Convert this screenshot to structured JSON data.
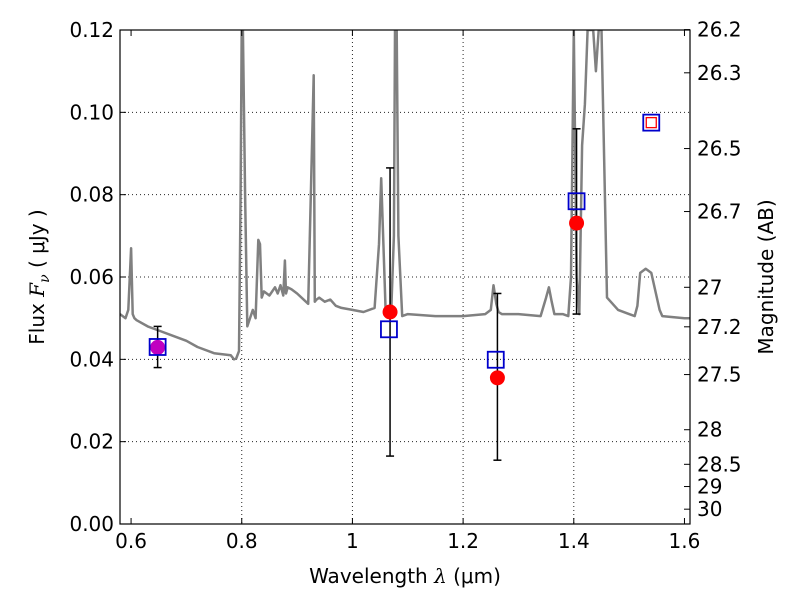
{
  "chart_data": {
    "type": "line",
    "xlabel_text": "Wavelength",
    "xlabel_math": "λ",
    "xlabel_unit": "(μm)",
    "ylabel_text": "Flux",
    "ylabel_math": "F",
    "ylabel_sub": "ν",
    "ylabel_unit": "( μJy )",
    "y2label": "Magnitude (AB)",
    "xlim": [
      0.58,
      1.61
    ],
    "ylim": [
      0.0,
      0.12
    ],
    "x_ticks": [
      0.6,
      0.8,
      1.0,
      1.2,
      1.4,
      1.6
    ],
    "x_tick_labels": [
      "0.6",
      "0.8",
      "1",
      "1.2",
      "1.4",
      "1.6"
    ],
    "y_ticks": [
      0.0,
      0.02,
      0.04,
      0.06,
      0.08,
      0.1,
      0.12
    ],
    "y_tick_labels": [
      "0.00",
      "0.02",
      "0.04",
      "0.06",
      "0.08",
      "0.10",
      "0.12"
    ],
    "y2_ticks": [
      {
        "flux": 0.1201,
        "label": "26.2"
      },
      {
        "flux": 0.1096,
        "label": "26.3"
      },
      {
        "flux": 0.0912,
        "label": "26.5"
      },
      {
        "flux": 0.0759,
        "label": "26.7"
      },
      {
        "flux": 0.0575,
        "label": "27"
      },
      {
        "flux": 0.0479,
        "label": "27.2"
      },
      {
        "flux": 0.0363,
        "label": "27.5"
      },
      {
        "flux": 0.0229,
        "label": "28"
      },
      {
        "flux": 0.0145,
        "label": "28.5"
      },
      {
        "flux": 0.0091,
        "label": "29"
      },
      {
        "flux": 0.0036,
        "label": "30"
      }
    ],
    "grid": true,
    "grid_x": [
      0.8,
      1.0,
      1.2,
      1.4
    ],
    "grid_y": [
      0.02,
      0.04,
      0.06,
      0.08,
      0.1
    ],
    "colors": {
      "model": "#808080",
      "observed": "#ff0000",
      "synthetic": "#0000cc",
      "overlap": "#c000c0",
      "errorbar": "#000000"
    },
    "series": [
      {
        "name": "model spectrum",
        "x": [
          0.58,
          0.59,
          0.595,
          0.6,
          0.603,
          0.606,
          0.61,
          0.63,
          0.65,
          0.68,
          0.7,
          0.72,
          0.75,
          0.78,
          0.786,
          0.79,
          0.795,
          0.798,
          0.8,
          0.802,
          0.806,
          0.81,
          0.82,
          0.825,
          0.83,
          0.833,
          0.836,
          0.84,
          0.85,
          0.86,
          0.865,
          0.87,
          0.875,
          0.878,
          0.88,
          0.883,
          0.89,
          0.9,
          0.92,
          0.93,
          0.932,
          0.935,
          0.94,
          0.95,
          0.96,
          0.97,
          0.98,
          1.0,
          1.02,
          1.04,
          1.048,
          1.052,
          1.056,
          1.06,
          1.065,
          1.07,
          1.075,
          1.077,
          1.08,
          1.083,
          1.09,
          1.1,
          1.15,
          1.2,
          1.24,
          1.25,
          1.255,
          1.26,
          1.264,
          1.27,
          1.3,
          1.34,
          1.35,
          1.355,
          1.36,
          1.365,
          1.38,
          1.39,
          1.395,
          1.4,
          1.405,
          1.41,
          1.415,
          1.42,
          1.425,
          1.43,
          1.435,
          1.44,
          1.445,
          1.45,
          1.46,
          1.48,
          1.5,
          1.51,
          1.515,
          1.52,
          1.53,
          1.54,
          1.555,
          1.56,
          1.6,
          1.61
        ],
        "y": [
          0.051,
          0.05,
          0.052,
          0.067,
          0.051,
          0.05,
          0.0495,
          0.048,
          0.047,
          0.0455,
          0.0445,
          0.043,
          0.0415,
          0.041,
          0.04,
          0.0402,
          0.042,
          0.08,
          0.12,
          0.12,
          0.08,
          0.048,
          0.052,
          0.05,
          0.069,
          0.068,
          0.055,
          0.0565,
          0.0555,
          0.0575,
          0.056,
          0.058,
          0.0555,
          0.064,
          0.056,
          0.0575,
          0.057,
          0.056,
          0.0535,
          0.109,
          0.054,
          0.0545,
          0.055,
          0.054,
          0.0545,
          0.053,
          0.0525,
          0.052,
          0.0515,
          0.0525,
          0.068,
          0.084,
          0.068,
          0.052,
          0.051,
          0.0515,
          0.07,
          0.12,
          0.12,
          0.07,
          0.0505,
          0.051,
          0.0505,
          0.0505,
          0.051,
          0.052,
          0.058,
          0.0535,
          0.0515,
          0.051,
          0.051,
          0.0505,
          0.055,
          0.0575,
          0.054,
          0.051,
          0.051,
          0.0505,
          0.06,
          0.12,
          0.06,
          0.051,
          0.092,
          0.102,
          0.12,
          0.12,
          0.12,
          0.11,
          0.12,
          0.12,
          0.055,
          0.052,
          0.051,
          0.0505,
          0.053,
          0.061,
          0.062,
          0.061,
          0.052,
          0.0505,
          0.05,
          0.05
        ]
      }
    ],
    "observed": [
      {
        "x": 0.648,
        "y": 0.0429,
        "err_lo": 0.038,
        "err_hi": 0.048
      },
      {
        "x": 1.068,
        "y": 0.0515,
        "err_lo": 0.0165,
        "err_hi": 0.0865
      },
      {
        "x": 1.262,
        "y": 0.0355,
        "err_lo": 0.0155,
        "err_hi": 0.056
      },
      {
        "x": 1.405,
        "y": 0.0731,
        "err_lo": 0.051,
        "err_hi": 0.096
      }
    ],
    "synthetic": [
      {
        "x": 0.648,
        "y": 0.043
      },
      {
        "x": 1.066,
        "y": 0.0473
      },
      {
        "x": 1.259,
        "y": 0.0399
      },
      {
        "x": 1.405,
        "y": 0.0784
      },
      {
        "x": 1.54,
        "y": 0.0975
      }
    ],
    "extra_marker": {
      "x": 1.54,
      "y": 0.0975,
      "label": "small red open square"
    }
  }
}
